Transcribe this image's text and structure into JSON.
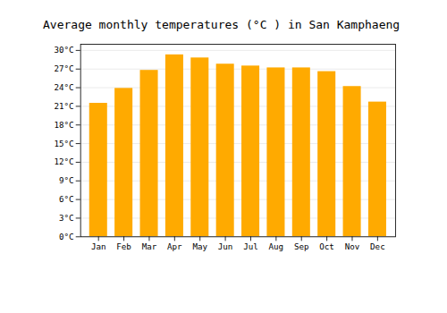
{
  "chart_data": {
    "type": "bar",
    "title": "Average monthly temperatures (°C ) in San Kamphaeng",
    "categories": [
      "Jan",
      "Feb",
      "Mar",
      "Apr",
      "May",
      "Jun",
      "Jul",
      "Aug",
      "Sep",
      "Oct",
      "Nov",
      "Dec"
    ],
    "values": [
      21.5,
      23.9,
      26.8,
      29.3,
      28.8,
      27.8,
      27.5,
      27.2,
      27.2,
      26.6,
      24.2,
      21.7
    ],
    "color": "#FFAA00",
    "ylim": [
      0,
      31
    ],
    "yticks": [
      {
        "value": 0,
        "label": "0°C"
      },
      {
        "value": 3,
        "label": "3°C"
      },
      {
        "value": 6,
        "label": "6°C"
      },
      {
        "value": 9,
        "label": "9°C"
      },
      {
        "value": 12,
        "label": "12°C"
      },
      {
        "value": 15,
        "label": "15°C"
      },
      {
        "value": 18,
        "label": "18°C"
      },
      {
        "value": 21,
        "label": "21°C"
      },
      {
        "value": 24,
        "label": "24°C"
      },
      {
        "value": 27,
        "label": "27°C"
      },
      {
        "value": 30,
        "label": "30°C"
      }
    ],
    "grid": true
  }
}
